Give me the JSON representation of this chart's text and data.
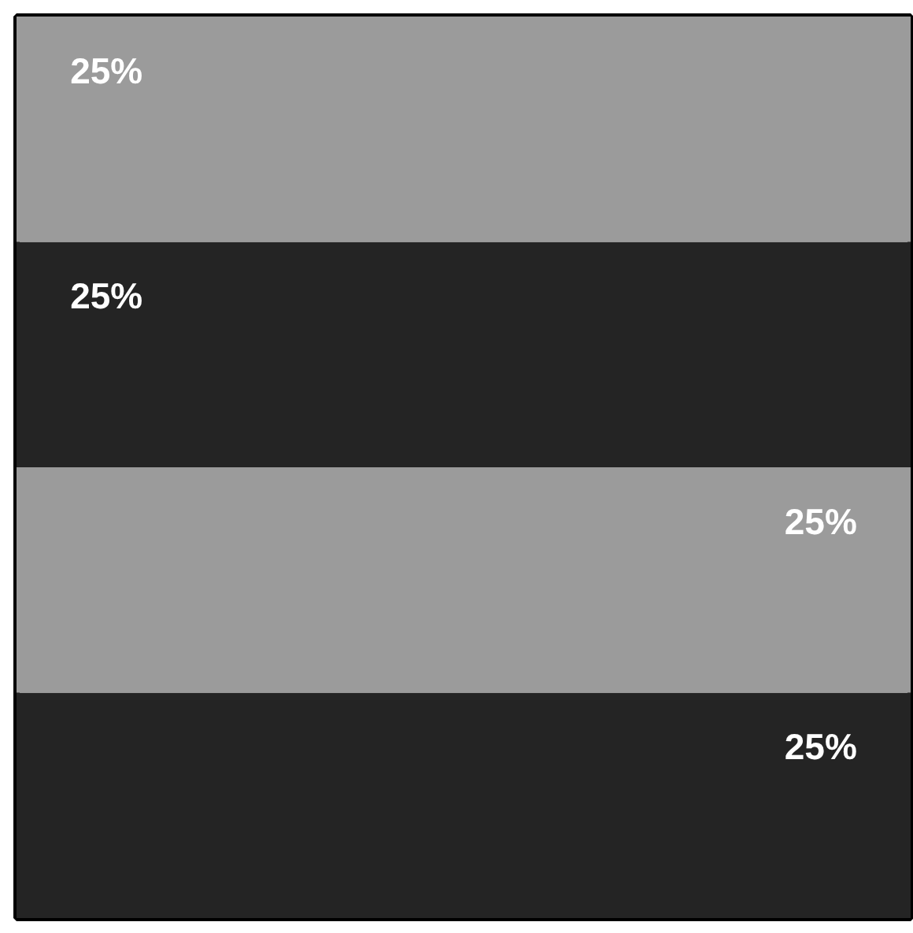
{
  "chart_data": {
    "type": "bar",
    "stacked": true,
    "categories": [
      null
    ],
    "series": [
      {
        "color": "#242424",
        "values": [
          25
        ],
        "value_labels": [
          "25%"
        ]
      },
      {
        "color": "#9b9b9b",
        "values": [
          25
        ],
        "value_labels": [
          "25%"
        ]
      },
      {
        "color": "#242424",
        "values": [
          25
        ],
        "value_labels": [
          "25%"
        ]
      },
      {
        "color": "#9b9b9b",
        "values": [
          25
        ],
        "value_labels": [
          "25%"
        ]
      }
    ],
    "grid": false,
    "tick_labels": false
  }
}
